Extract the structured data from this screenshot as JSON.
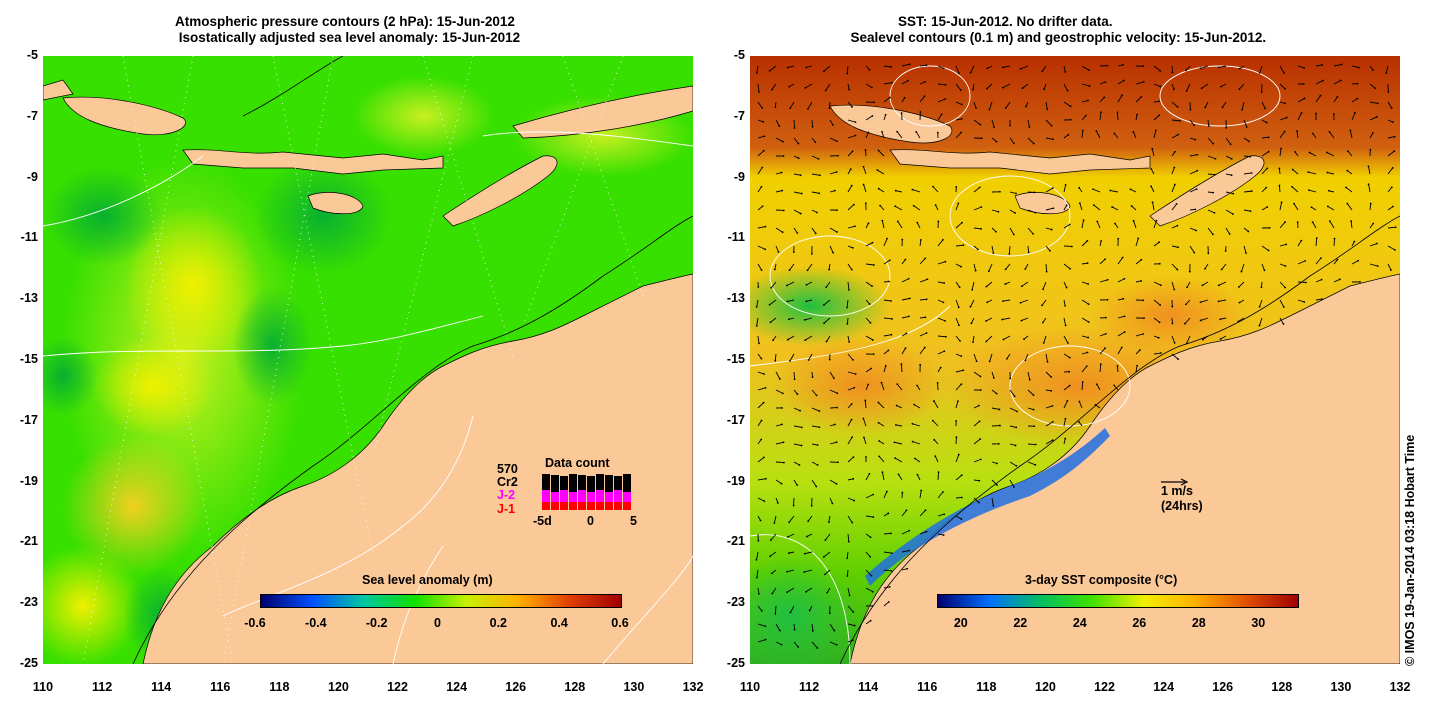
{
  "left_panel": {
    "title_line1": "Atmospheric pressure contours (2 hPa): 15-Jun-2012",
    "title_line2": " Isostatically adjusted sea level anomaly: 15-Jun-2012",
    "colorbar_label": "Sea level anomaly (m)",
    "colorbar_ticks": [
      "-0.6",
      "-0.4",
      "-0.2",
      "0",
      "0.2",
      "0.4",
      "0.6"
    ],
    "legend": {
      "count_value": "570",
      "label_cr2": "Cr2",
      "label_j2": "J-2",
      "label_j1": "J-1",
      "title": "Data count",
      "axis_left": "-5d",
      "axis_mid": "0",
      "axis_right": "5",
      "color_j2": "#ff00ff",
      "color_j1": "#ff0000"
    }
  },
  "right_panel": {
    "title_line1": "SST: 15-Jun-2012. No drifter data.",
    "title_line2": "  Sealevel contours (0.1 m) and geostrophic velocity: 15-Jun-2012.",
    "colorbar_label": "3-day SST composite (°C)",
    "colorbar_ticks": [
      "20",
      "22",
      "24",
      "26",
      "28",
      "30"
    ],
    "scale_arrow_label": "1 m/s",
    "scale_arrow_sublabel": "(24hrs)"
  },
  "axes": {
    "y_ticks": [
      "-5",
      "-7",
      "-9",
      "-11",
      "-13",
      "-15",
      "-17",
      "-19",
      "-21",
      "-23",
      "-25"
    ],
    "x_ticks": [
      "110",
      "112",
      "114",
      "116",
      "118",
      "120",
      "122",
      "124",
      "126",
      "128",
      "130",
      "132"
    ],
    "lon_range": [
      110,
      132
    ],
    "lat_range": [
      -25,
      -5
    ]
  },
  "credit": "© IMOS 19-Jan-2014 03:18 Hobart Time",
  "colors": {
    "land": "#fbc898",
    "sla_scale": [
      "#00006e",
      "#0050ff",
      "#00c8a0",
      "#10e000",
      "#c8f000",
      "#ffb000",
      "#e04000",
      "#a00000"
    ],
    "sst_scale": [
      "#00006e",
      "#0070ff",
      "#00c060",
      "#40e000",
      "#f0f000",
      "#ffb000",
      "#e05000",
      "#a00000"
    ]
  }
}
